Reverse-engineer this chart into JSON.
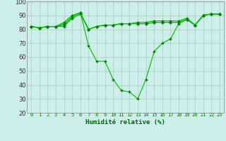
{
  "xlabel": "Humidité relative (%)",
  "background_color": "#cceee8",
  "grid_color": "#aaccbb",
  "line_color": "#00bb00",
  "marker_color": "#007700",
  "x_labels": [
    "0",
    "1",
    "2",
    "3",
    "4",
    "5",
    "6",
    "7",
    "8",
    "9",
    "10",
    "11",
    "12",
    "13",
    "14",
    "15",
    "16",
    "17",
    "18",
    "19",
    "20",
    "21",
    "22",
    "23"
  ],
  "ylim": [
    20,
    100
  ],
  "xlim": [
    -0.5,
    23.5
  ],
  "yticks": [
    20,
    30,
    40,
    50,
    60,
    70,
    80,
    90,
    100
  ],
  "series": [
    [
      82,
      81,
      82,
      82,
      82,
      88,
      91,
      80,
      82,
      83,
      83,
      84,
      84,
      84,
      84,
      85,
      85,
      85,
      85,
      87,
      83,
      90,
      91,
      91
    ],
    [
      82,
      81,
      82,
      82,
      83,
      88,
      91,
      80,
      82,
      83,
      83,
      84,
      84,
      84,
      84,
      85,
      85,
      85,
      85,
      87,
      83,
      90,
      91,
      91
    ],
    [
      82,
      81,
      82,
      82,
      84,
      89,
      92,
      80,
      82,
      83,
      83,
      84,
      84,
      85,
      85,
      86,
      86,
      86,
      86,
      88,
      83,
      90,
      91,
      91
    ],
    [
      82,
      81,
      82,
      82,
      85,
      90,
      92,
      68,
      57,
      57,
      44,
      36,
      35,
      30,
      44,
      64,
      70,
      73,
      84,
      87,
      83,
      90,
      91,
      91
    ]
  ]
}
